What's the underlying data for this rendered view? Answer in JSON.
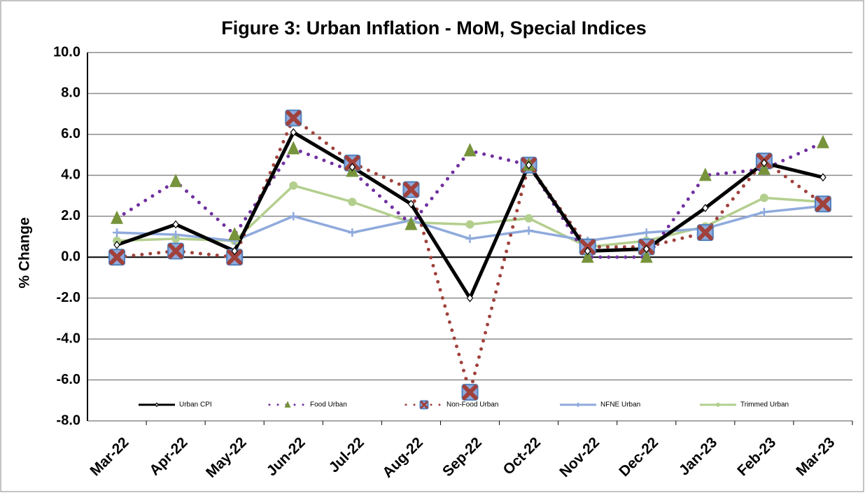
{
  "chart_data": {
    "type": "line",
    "title": "Figure 3: Urban Inflation - MoM, Special Indices",
    "ylabel": "% Change",
    "categories": [
      "Mar-22",
      "Apr-22",
      "May-22",
      "Jun-22",
      "Jul-22",
      "Aug-22",
      "Sep-22",
      "Oct-22",
      "Nov-22",
      "Dec-22",
      "Jan-23",
      "Feb-23",
      "Mar-23"
    ],
    "ylim": [
      -8,
      10
    ],
    "yticks": [
      {
        "value": -8,
        "label": "-8.0"
      },
      {
        "value": -6,
        "label": "-6.0"
      },
      {
        "value": -4,
        "label": "-4.0"
      },
      {
        "value": -2,
        "label": "-2.0"
      },
      {
        "value": 0,
        "label": "0.0"
      },
      {
        "value": 2,
        "label": "2.0"
      },
      {
        "value": 4,
        "label": "4.0"
      },
      {
        "value": 6,
        "label": "6.0"
      },
      {
        "value": 8,
        "label": "8.0"
      },
      {
        "value": 10,
        "label": "10.0"
      }
    ],
    "grid": true,
    "legend": "bottom",
    "series": [
      {
        "name": "Urban CPI",
        "color": "#000000",
        "dash": "solid",
        "marker": "diamond",
        "marker_color": "#ffffff",
        "values": [
          0.6,
          1.6,
          0.3,
          6.1,
          4.4,
          2.6,
          -2.0,
          4.5,
          0.3,
          0.4,
          2.4,
          4.6,
          3.9
        ]
      },
      {
        "name": "Food Urban",
        "color": "#7030a0",
        "dash": "dotted",
        "marker": "triangle",
        "marker_color": "#77933c",
        "values": [
          1.9,
          3.7,
          1.1,
          5.3,
          4.2,
          1.6,
          5.2,
          4.5,
          0.0,
          0.0,
          4.0,
          4.3,
          5.6
        ]
      },
      {
        "name": "Non-Food Urban",
        "color": "#a0413c",
        "dash": "dotted",
        "marker": "square-x",
        "marker_color": "#8faadc",
        "values": [
          0.0,
          0.3,
          0.0,
          6.8,
          4.6,
          3.3,
          -6.6,
          4.5,
          0.5,
          0.5,
          1.2,
          4.7,
          2.6
        ]
      },
      {
        "name": "NFNE Urban",
        "color": "#8faadc",
        "dash": "solid",
        "marker": "plus",
        "marker_color": "#8faadc",
        "values": [
          1.2,
          1.1,
          0.8,
          2.0,
          1.2,
          1.8,
          0.9,
          1.3,
          0.8,
          1.2,
          1.4,
          2.2,
          2.5
        ]
      },
      {
        "name": "Trimmed Urban",
        "color": "#b3cf8e",
        "dash": "solid",
        "marker": "circle",
        "marker_color": "#b3cf8e",
        "values": [
          0.8,
          0.9,
          0.8,
          3.5,
          2.7,
          1.7,
          1.6,
          1.9,
          0.5,
          0.8,
          1.5,
          2.9,
          2.7
        ]
      }
    ]
  }
}
